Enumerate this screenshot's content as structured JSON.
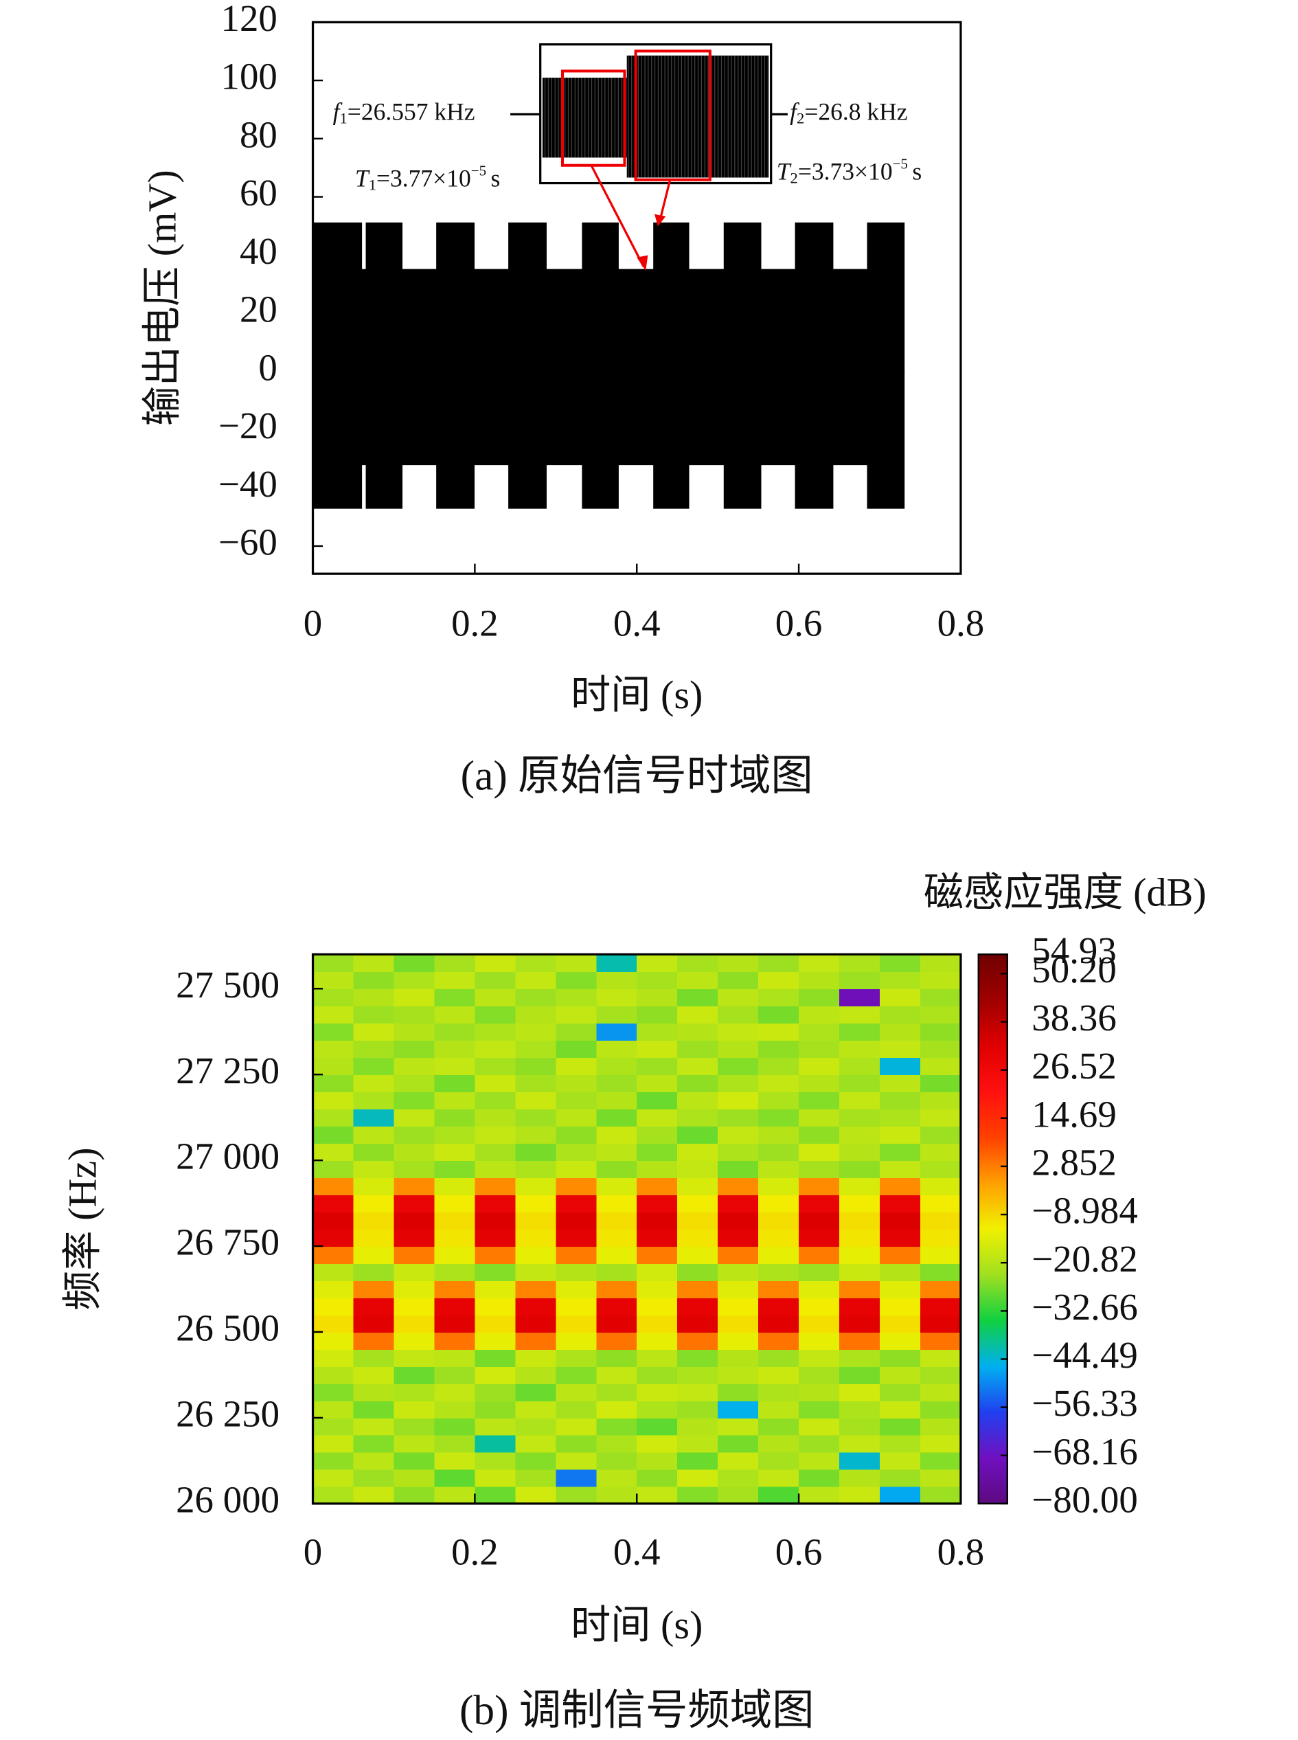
{
  "chart_data": [
    {
      "type": "area",
      "y_label": "输出电压 (mV)",
      "x_label": "时间 (s)",
      "caption": "(a) 原始信号时域图",
      "x": [
        0,
        0.06,
        0.06,
        0.066,
        0.066,
        0.11,
        0.11,
        0.153,
        0.153,
        0.199,
        0.199,
        0.242,
        0.242,
        0.288,
        0.288,
        0.333,
        0.333,
        0.377,
        0.377,
        0.421,
        0.421,
        0.464,
        0.464,
        0.508,
        0.508,
        0.553,
        0.553,
        0.596,
        0.596,
        0.642,
        0.642,
        0.685,
        0.685,
        0.73
      ],
      "series": [
        {
          "color": "#000000",
          "values": [
            51,
            51,
            35,
            35,
            51,
            51,
            35,
            35,
            51,
            51,
            35,
            35,
            51,
            51,
            35,
            35,
            51,
            51,
            35,
            35,
            51,
            51,
            35,
            35,
            51,
            51,
            35,
            35,
            51,
            51,
            35,
            35,
            51,
            51
          ]
        },
        {
          "color": "#000000",
          "values": [
            -47,
            -47,
            -32,
            -32,
            -47,
            -47,
            -32,
            -32,
            -47,
            -47,
            -32,
            -32,
            -47,
            -47,
            -32,
            -32,
            -47,
            -47,
            -32,
            -32,
            -47,
            -47,
            -32,
            -32,
            -47,
            -47,
            -32,
            -32,
            -47,
            -47,
            -32,
            -32,
            -47,
            -47
          ]
        }
      ],
      "xlim": [
        0,
        0.8
      ],
      "xticks": [
        0,
        0.2,
        0.4,
        0.6,
        0.8
      ],
      "ylim": [
        -69.5,
        120
      ],
      "yticks": [
        120,
        100,
        80,
        60,
        40,
        20,
        0,
        {
          "value": -20,
          "label": "−20"
        },
        {
          "value": -40,
          "label": "−40"
        },
        {
          "value": -60,
          "label": "−60"
        }
      ],
      "annotations": [
        {
          "var": "f",
          "sub": "1",
          "text": "=26.557 kHz"
        },
        {
          "var": "f",
          "sub": "2",
          "text": "=26.8 kHz"
        },
        {
          "var": "T",
          "sub": "1",
          "text": "=3.77×10",
          "sup": "−5",
          "unit": "s"
        },
        {
          "var": "T",
          "sub": "2",
          "text": "=3.73×10",
          "sup": "−5",
          "unit": "s"
        }
      ]
    },
    {
      "type": "heatmap",
      "y_label": "频率 (Hz)",
      "x_label": "时间 (s)",
      "caption": "(b) 调制信号频域图",
      "colorbar_label": "磁感应强度 (dB)",
      "xlim": [
        0,
        0.8
      ],
      "xticks": [
        0,
        0.2,
        0.4,
        0.6,
        0.8
      ],
      "ylim": [
        26000,
        27600
      ],
      "yticks": [
        {
          "value": 26000,
          "label": "26 000"
        },
        {
          "value": 26250,
          "label": "26 250"
        },
        {
          "value": 26500,
          "label": "26 500"
        },
        {
          "value": 26750,
          "label": "26 750"
        },
        {
          "value": 27000,
          "label": "27 000"
        },
        {
          "value": 27250,
          "label": "27 250"
        },
        {
          "value": 27500,
          "label": "27 500"
        }
      ],
      "zlim": [
        -80,
        54.93
      ],
      "colorbar_ticks": [
        54.93,
        {
          "value": 50.2,
          "label": "50.20"
        },
        38.36,
        26.52,
        14.69,
        2.852,
        {
          "value": -8.984,
          "label": "−8.984"
        },
        {
          "value": -20.82,
          "label": "−20.82"
        },
        {
          "value": -32.66,
          "label": "−32.66"
        },
        {
          "value": -44.49,
          "label": "−44.49"
        },
        {
          "value": -56.33,
          "label": "−56.33"
        },
        {
          "value": -68.16,
          "label": "−68.16"
        },
        {
          "value": -80,
          "label": "−80.00"
        }
      ],
      "colormap": [
        "#5c0a80",
        "#7010c0",
        "#2040f0",
        "#00b0f0",
        "#10d040",
        "#a0e020",
        "#f0f000",
        "#ffa000",
        "#ff4000",
        "#ff1010",
        "#e00000",
        "#a00000",
        "#700000"
      ],
      "z": [
        [
          -22,
          -18,
          -25,
          -20,
          -28,
          -17,
          -24,
          -21,
          -19,
          -26,
          -23,
          -30,
          -20,
          -18,
          -47,
          -24
        ],
        [
          -19,
          -24,
          -21,
          -29,
          -18,
          -23,
          -52,
          -20,
          -25,
          -17,
          -22,
          -19,
          -27,
          -21,
          -24,
          -20
        ],
        [
          -25,
          -20,
          -27,
          -18,
          -22,
          -26,
          -19,
          -24,
          -21,
          -28,
          -18,
          -23,
          -20,
          -44,
          -19,
          -26
        ],
        [
          -18,
          -26,
          -20,
          -23,
          -41,
          -19,
          -25,
          -22,
          -17,
          -20,
          -27,
          -21,
          -24,
          -19,
          -22,
          -18
        ],
        [
          -23,
          -19,
          -24,
          -27,
          -20,
          -22,
          -18,
          -26,
          -29,
          -21,
          -19,
          -25,
          -18,
          -23,
          -27,
          -21
        ],
        [
          -20,
          -27,
          -18,
          -21,
          -25,
          -19,
          -23,
          -17,
          -22,
          -24,
          -46,
          -20,
          -26,
          -22,
          -18,
          -25
        ],
        [
          -26,
          -21,
          -22,
          -19,
          -24,
          -28,
          -20,
          -23,
          -18,
          -19,
          -25,
          -22,
          -21,
          -17,
          -24,
          -20
        ],
        [
          -21,
          -18,
          -28,
          -24,
          -17,
          -21,
          -26,
          -19,
          -24,
          -22,
          -20,
          -18,
          -23,
          -27,
          -20,
          -23
        ],
        [
          -17,
          -23,
          -19,
          -20,
          -27,
          -18,
          -22,
          -25,
          -20,
          -26,
          -21,
          -24,
          -19,
          -22,
          -25,
          -19
        ],
        [
          -14,
          4,
          -14,
          4,
          -14,
          4,
          -14,
          4,
          -14,
          4,
          -14,
          4,
          -14,
          4,
          -14,
          4
        ],
        [
          -10,
          32,
          -10,
          32,
          -10,
          32,
          -10,
          32,
          -10,
          32,
          -10,
          32,
          -10,
          32,
          -10,
          32
        ],
        [
          -12,
          30,
          -12,
          30,
          -12,
          30,
          -12,
          30,
          -12,
          30,
          -12,
          30,
          -12,
          30,
          -12,
          30
        ],
        [
          -15,
          2,
          -15,
          2,
          -15,
          2,
          -15,
          2,
          -15,
          2,
          -15,
          2,
          -15,
          2,
          -15,
          2
        ],
        [
          -20,
          -24,
          -18,
          -22,
          -26,
          -19,
          -21,
          -23,
          -17,
          -25,
          -20,
          -22,
          -24,
          -18,
          -21,
          -26
        ],
        [
          3,
          -14,
          3,
          -14,
          3,
          -14,
          3,
          -14,
          3,
          -14,
          3,
          -14,
          3,
          -14,
          3,
          -14
        ],
        [
          31,
          -11,
          31,
          -11,
          31,
          -11,
          31,
          -11,
          31,
          -11,
          31,
          -11,
          31,
          -11,
          31,
          -11
        ],
        [
          33,
          -10,
          33,
          -10,
          33,
          -10,
          33,
          -10,
          33,
          -10,
          33,
          -10,
          33,
          -10,
          33,
          -10
        ],
        [
          29,
          -12,
          29,
          -12,
          29,
          -12,
          29,
          -12,
          29,
          -12,
          29,
          -12,
          29,
          -12,
          29,
          -12
        ],
        [
          1,
          -16,
          1,
          -16,
          1,
          -16,
          1,
          -16,
          1,
          -16,
          1,
          -16,
          1,
          -16,
          1,
          -16
        ],
        [
          -24,
          -19,
          -23,
          -26,
          -20,
          -22,
          -18,
          -25,
          -21,
          -19,
          -27,
          -20,
          -23,
          -25,
          -19,
          -22
        ],
        [
          -19,
          -25,
          -21,
          -18,
          -23,
          -27,
          -22,
          -20,
          -26,
          -18,
          -22,
          -24,
          -17,
          -21,
          -26,
          -20
        ],
        [
          -27,
          -20,
          -24,
          -22,
          -19,
          -21,
          -25,
          -18,
          -23,
          -28,
          -19,
          -21,
          -25,
          -20,
          -18,
          -24
        ],
        [
          -22,
          -43,
          -19,
          -25,
          -21,
          -24,
          -20,
          -27,
          -19,
          -22,
          -24,
          -26,
          -20,
          -23,
          -22,
          -19
        ],
        [
          -18,
          -22,
          -26,
          -20,
          -24,
          -18,
          -23,
          -21,
          -28,
          -20,
          -17,
          -22,
          -26,
          -19,
          -24,
          -21
        ],
        [
          -25,
          -19,
          -22,
          -27,
          -18,
          -23,
          -21,
          -24,
          -20,
          -25,
          -22,
          -19,
          -21,
          -24,
          -20,
          -27
        ],
        [
          -21,
          -26,
          -20,
          -19,
          -23,
          -25,
          -18,
          -22,
          -24,
          -19,
          -26,
          -23,
          -18,
          -22,
          -45,
          -20
        ],
        [
          -20,
          -23,
          -25,
          -21,
          -19,
          -22,
          -27,
          -20,
          -18,
          -24,
          -21,
          -25,
          -23,
          -20,
          -19,
          -23
        ],
        [
          -26,
          -18,
          -21,
          -24,
          -22,
          -20,
          -24,
          -49,
          -22,
          -21,
          -19,
          -18,
          -22,
          -26,
          -21,
          -25
        ],
        [
          -19,
          -24,
          -23,
          -20,
          -26,
          -21,
          -19,
          -23,
          -25,
          -18,
          -23,
          -27,
          -20,
          -19,
          -23,
          -22
        ],
        [
          -23,
          -21,
          -18,
          -26,
          -20,
          -24,
          -22,
          -19,
          -21,
          -27,
          -20,
          -22,
          -25,
          -70,
          -18,
          -24
        ],
        [
          -20,
          -25,
          -22,
          -19,
          -24,
          -19,
          -26,
          -21,
          -23,
          -20,
          -25,
          -18,
          -21,
          -24,
          -22,
          -20
        ],
        [
          -24,
          -20,
          -27,
          -23,
          -18,
          -22,
          -20,
          -42,
          -19,
          -23,
          -21,
          -24,
          -19,
          -22,
          -26,
          -21
        ]
      ]
    }
  ]
}
